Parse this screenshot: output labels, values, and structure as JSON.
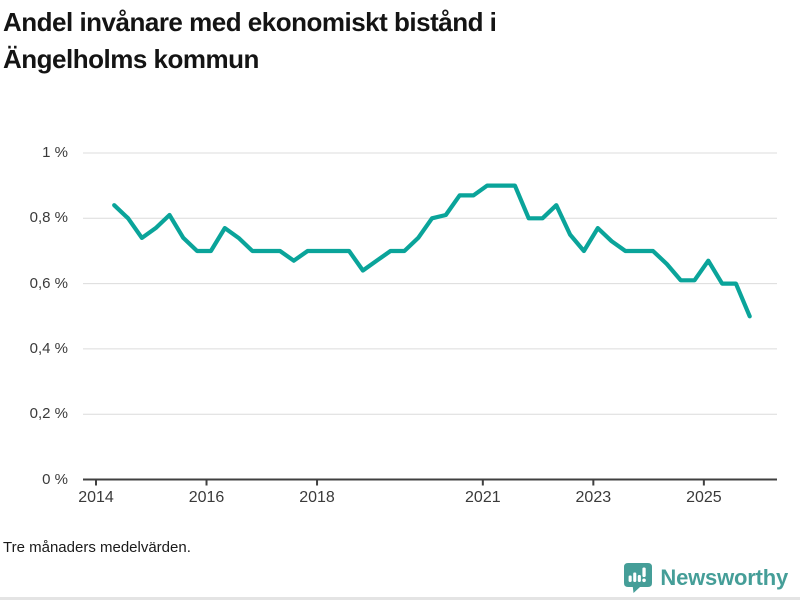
{
  "title": {
    "line1": "Andel invånare med ekonomiskt bistånd i",
    "line2": "Ängelholms kommun"
  },
  "footnote": "Tre månaders medelvärden.",
  "brand": {
    "name": "Newsworthy",
    "icon": "newsworthy-speech-bubble-barchart-icon"
  },
  "colors": {
    "line": "#0aa49a",
    "brand": "#459e98",
    "grid": "#dcdcdc",
    "axis": "#404040",
    "tick_text": "#3a3a3a"
  },
  "chart_data": {
    "type": "line",
    "title": "Andel invånare med ekonomiskt bistånd i Ängelholms kommun",
    "note": "Tre månaders medelvärden.",
    "unit": "%",
    "x_start_year": 2014.33,
    "x_step_years": 0.25,
    "values": [
      0.84,
      0.8,
      0.74,
      0.77,
      0.81,
      0.74,
      0.7,
      0.7,
      0.77,
      0.74,
      0.7,
      0.7,
      0.7,
      0.67,
      0.7,
      0.7,
      0.7,
      0.7,
      0.64,
      0.67,
      0.7,
      0.7,
      0.74,
      0.8,
      0.81,
      0.87,
      0.87,
      0.9,
      0.9,
      0.9,
      0.8,
      0.8,
      0.84,
      0.75,
      0.7,
      0.77,
      0.73,
      0.7,
      0.7,
      0.7,
      0.66,
      0.61,
      0.61,
      0.67,
      0.6,
      0.6,
      0.5
    ],
    "x_tick_labels": [
      "2014",
      "2016",
      "2018",
      "2021",
      "2023",
      "2025"
    ],
    "y_tick_labels": [
      "0 %",
      "0,2 %",
      "0,4 %",
      "0,6 %",
      "0,8 %",
      "1 %"
    ],
    "y_tick_values": [
      0,
      0.2,
      0.4,
      0.6,
      0.8,
      1
    ],
    "ylim": [
      0,
      1.05
    ],
    "grid": true,
    "legend": false
  }
}
